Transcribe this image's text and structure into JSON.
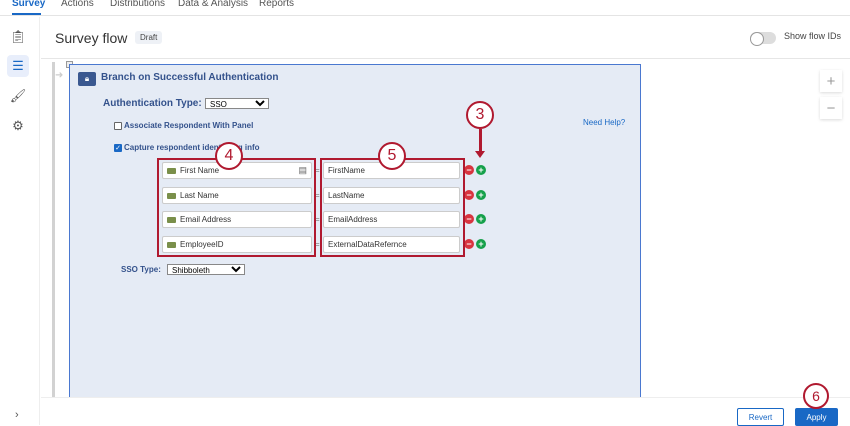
{
  "nav": {
    "tabs": [
      "Survey",
      "Actions",
      "Distributions",
      "Data & Analysis",
      "Reports"
    ]
  },
  "sidebar": {
    "icons": [
      "survey-clipboard-icon",
      "survey-flow-icon",
      "look-and-feel-roller-icon",
      "survey-options-icon"
    ],
    "expand": "›"
  },
  "header": {
    "title": "Survey flow",
    "badge": "Draft",
    "toggle_label": "Show flow IDs",
    "toggle_on": false
  },
  "panel": {
    "title": "Branch on Successful Authentication",
    "auth_type_label": "Authentication Type:",
    "auth_type": "SSO",
    "associate_label": "Associate Respondent With Panel",
    "associate_checked": false,
    "capture_label": "Capture respondent identifying info",
    "capture_checked": true,
    "need_help": "Need Help?",
    "mappings": [
      {
        "field": "First Name",
        "attribute": "FirstName"
      },
      {
        "field": "Last Name",
        "attribute": "LastName"
      },
      {
        "field": "Email Address",
        "attribute": "EmailAddress"
      },
      {
        "field": "EmployeeID",
        "attribute": "ExternalDataRefernce"
      }
    ],
    "equals": "=",
    "sso_type_label": "SSO Type:",
    "sso_type": "Shibboleth"
  },
  "callouts": {
    "c3": "3",
    "c4": "4",
    "c5": "5",
    "c6": "6"
  },
  "zoom": {
    "in": "+",
    "out": "−"
  },
  "footer": {
    "revert": "Revert",
    "apply": "Apply"
  },
  "colors": {
    "accent": "#1968c5",
    "callout": "#b0192f",
    "panel": "#e5ebf5"
  }
}
